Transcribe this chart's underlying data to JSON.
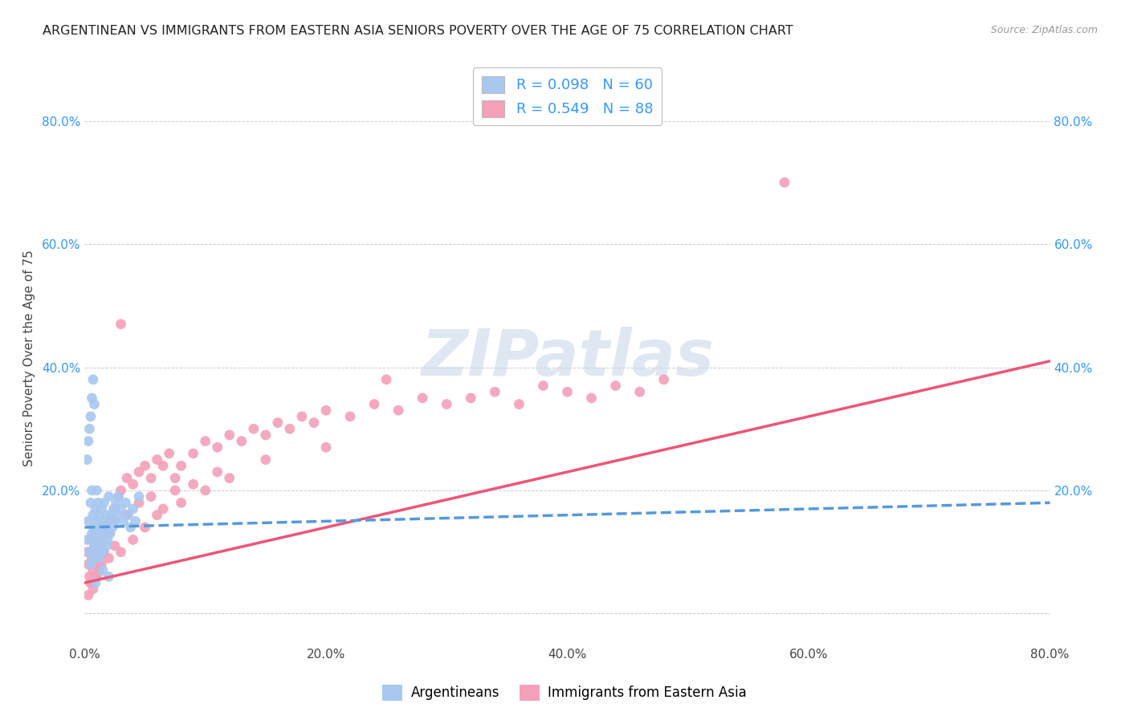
{
  "title": "ARGENTINEAN VS IMMIGRANTS FROM EASTERN ASIA SENIORS POVERTY OVER THE AGE OF 75 CORRELATION CHART",
  "source": "Source: ZipAtlas.com",
  "ylabel": "Seniors Poverty Over the Age of 75",
  "blue_R": 0.098,
  "blue_N": 60,
  "pink_R": 0.549,
  "pink_N": 88,
  "blue_color": "#A8C8F0",
  "pink_color": "#F4A0B8",
  "blue_line_color": "#5599DD",
  "pink_line_color": "#EE5577",
  "background_color": "#FFFFFF",
  "grid_color": "#CCCCCC",
  "watermark_color": "#C8D8EA",
  "xlim": [
    0,
    0.8
  ],
  "ylim": [
    -0.05,
    0.88
  ],
  "blue_scatter_x": [
    0.002,
    0.003,
    0.004,
    0.005,
    0.005,
    0.006,
    0.006,
    0.007,
    0.007,
    0.008,
    0.008,
    0.009,
    0.009,
    0.01,
    0.01,
    0.01,
    0.011,
    0.011,
    0.012,
    0.012,
    0.013,
    0.013,
    0.014,
    0.014,
    0.015,
    0.015,
    0.016,
    0.016,
    0.017,
    0.018,
    0.018,
    0.019,
    0.02,
    0.02,
    0.021,
    0.022,
    0.023,
    0.024,
    0.025,
    0.026,
    0.027,
    0.028,
    0.03,
    0.032,
    0.034,
    0.036,
    0.038,
    0.04,
    0.042,
    0.045,
    0.002,
    0.003,
    0.004,
    0.005,
    0.006,
    0.007,
    0.008,
    0.009,
    0.015,
    0.02
  ],
  "blue_scatter_y": [
    0.12,
    0.15,
    0.1,
    0.08,
    0.18,
    0.13,
    0.2,
    0.09,
    0.16,
    0.11,
    0.14,
    0.17,
    0.12,
    0.1,
    0.15,
    0.2,
    0.13,
    0.18,
    0.09,
    0.16,
    0.11,
    0.14,
    0.12,
    0.17,
    0.1,
    0.15,
    0.13,
    0.18,
    0.14,
    0.11,
    0.16,
    0.12,
    0.15,
    0.19,
    0.13,
    0.16,
    0.14,
    0.17,
    0.15,
    0.18,
    0.16,
    0.19,
    0.17,
    0.15,
    0.18,
    0.16,
    0.14,
    0.17,
    0.15,
    0.19,
    0.25,
    0.28,
    0.3,
    0.32,
    0.35,
    0.38,
    0.34,
    0.05,
    0.07,
    0.06
  ],
  "pink_scatter_x": [
    0.002,
    0.003,
    0.004,
    0.005,
    0.005,
    0.006,
    0.007,
    0.008,
    0.008,
    0.009,
    0.01,
    0.01,
    0.011,
    0.012,
    0.013,
    0.014,
    0.015,
    0.016,
    0.018,
    0.02,
    0.022,
    0.025,
    0.028,
    0.03,
    0.035,
    0.04,
    0.045,
    0.05,
    0.055,
    0.06,
    0.065,
    0.07,
    0.075,
    0.08,
    0.09,
    0.1,
    0.11,
    0.12,
    0.13,
    0.14,
    0.15,
    0.16,
    0.17,
    0.18,
    0.19,
    0.2,
    0.22,
    0.24,
    0.26,
    0.28,
    0.3,
    0.32,
    0.34,
    0.36,
    0.38,
    0.4,
    0.42,
    0.44,
    0.46,
    0.48,
    0.003,
    0.005,
    0.007,
    0.009,
    0.012,
    0.015,
    0.02,
    0.025,
    0.03,
    0.04,
    0.05,
    0.06,
    0.08,
    0.1,
    0.12,
    0.15,
    0.2,
    0.25,
    0.58,
    0.03,
    0.025,
    0.035,
    0.045,
    0.055,
    0.065,
    0.075,
    0.09,
    0.11
  ],
  "pink_scatter_y": [
    0.1,
    0.08,
    0.06,
    0.05,
    0.12,
    0.09,
    0.07,
    0.11,
    0.08,
    0.13,
    0.1,
    0.06,
    0.09,
    0.07,
    0.11,
    0.08,
    0.12,
    0.1,
    0.14,
    0.13,
    0.15,
    0.17,
    0.19,
    0.2,
    0.22,
    0.21,
    0.23,
    0.24,
    0.22,
    0.25,
    0.24,
    0.26,
    0.22,
    0.24,
    0.26,
    0.28,
    0.27,
    0.29,
    0.28,
    0.3,
    0.29,
    0.31,
    0.3,
    0.32,
    0.31,
    0.33,
    0.32,
    0.34,
    0.33,
    0.35,
    0.34,
    0.35,
    0.36,
    0.34,
    0.37,
    0.36,
    0.35,
    0.37,
    0.36,
    0.38,
    0.03,
    0.05,
    0.04,
    0.06,
    0.08,
    0.1,
    0.09,
    0.11,
    0.1,
    0.12,
    0.14,
    0.16,
    0.18,
    0.2,
    0.22,
    0.25,
    0.27,
    0.38,
    0.7,
    0.47,
    0.15,
    0.16,
    0.18,
    0.19,
    0.17,
    0.2,
    0.21,
    0.23
  ]
}
